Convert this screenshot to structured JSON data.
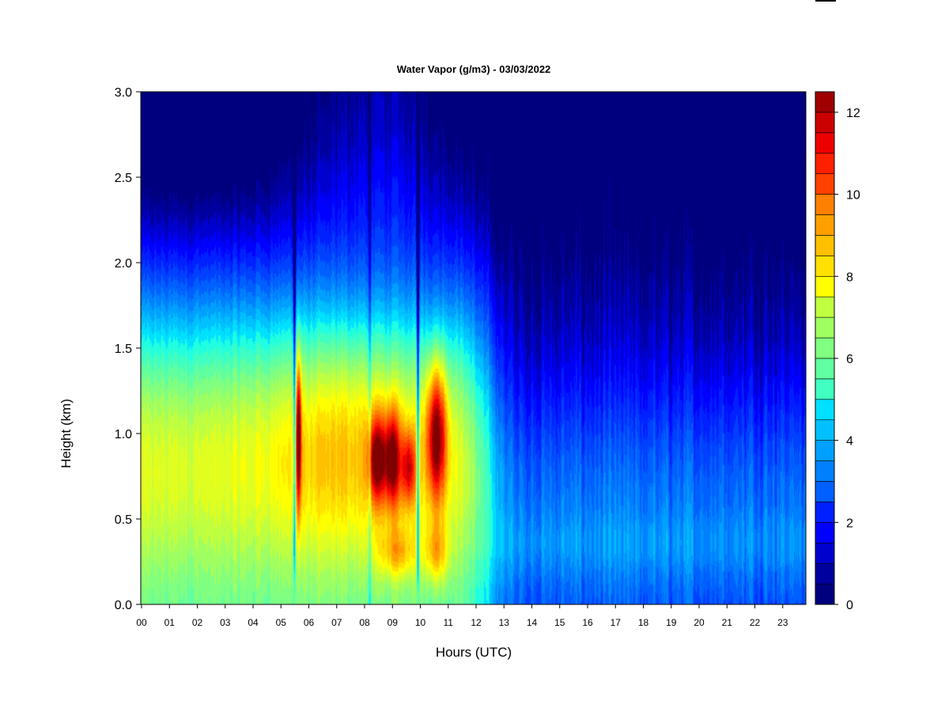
{
  "chart_data": {
    "type": "heatmap",
    "title": "Water Vapor (g/m3) - 03/03/2022",
    "xlabel": "Hours (UTC)",
    "ylabel": "Height (km)",
    "x_ticks": [
      "00",
      "01",
      "02",
      "03",
      "04",
      "05",
      "06",
      "07",
      "08",
      "09",
      "10",
      "11",
      "12",
      "13",
      "14",
      "15",
      "16",
      "17",
      "18",
      "19",
      "20",
      "21",
      "22",
      "23"
    ],
    "y_ticks": [
      "0.0",
      "0.5",
      "1.0",
      "1.5",
      "2.0",
      "2.5",
      "3.0"
    ],
    "xlim": [
      0,
      24
    ],
    "ylim": [
      0,
      3
    ],
    "colorbar": {
      "range": [
        0,
        12.5
      ],
      "step": 0.5,
      "ticks": [
        0,
        2,
        4,
        6,
        8,
        10,
        12
      ],
      "colors": [
        "#00007F",
        "#00009F",
        "#0000CF",
        "#0000FF",
        "#0020FF",
        "#0040FF",
        "#0060FF",
        "#0080FF",
        "#00A0FF",
        "#00C0FF",
        "#00E0FF",
        "#20FFE0",
        "#40FFC0",
        "#60FFA0",
        "#80FF80",
        "#A0FF60",
        "#C0FF40",
        "#E0FF20",
        "#FFFF00",
        "#FFE000",
        "#FFC000",
        "#FFA000",
        "#FF8000",
        "#FF6000",
        "#FF4000",
        "#FF2000",
        "#EE0000",
        "#CC0000",
        "#A00000",
        "#800000"
      ]
    },
    "features": [
      {
        "hour": 5.65,
        "height": 1.0,
        "value": 11,
        "note": "narrow vertical streak"
      },
      {
        "hour": 8.7,
        "height": 0.85,
        "value": 11
      },
      {
        "hour": 10.6,
        "height": 1.0,
        "value": 11.5
      }
    ],
    "dry_layer": {
      "value": 0.5,
      "above_km_after_13h": 2.2
    }
  }
}
